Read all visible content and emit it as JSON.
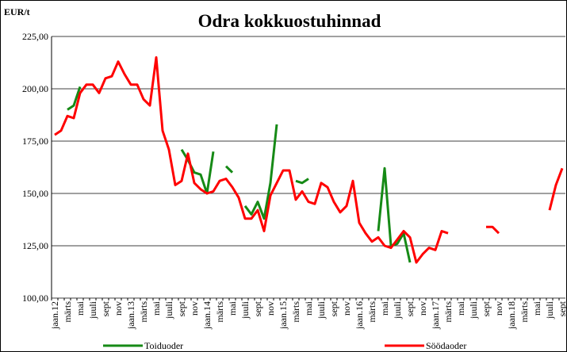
{
  "chart_data": {
    "type": "line",
    "title": "Odra kokkuostuhinnad",
    "y_label": "EUR/t",
    "categories": [
      "jaan.12",
      null,
      "märts",
      null,
      "mai",
      null,
      "juuli",
      null,
      "sept",
      null,
      "nov",
      null,
      "jaan.13",
      null,
      "märts",
      null,
      "mai",
      null,
      "juuli",
      null,
      "sept",
      null,
      "nov",
      null,
      "jaan.14",
      null,
      "märts",
      null,
      "mai",
      null,
      "juuli",
      null,
      "sept",
      null,
      "nov",
      null,
      "jaan.15",
      null,
      "märts",
      null,
      "mai",
      null,
      "juuli",
      null,
      "sept",
      null,
      "nov",
      null,
      "jaan.16",
      null,
      "märts",
      null,
      "mai",
      null,
      "juuli",
      null,
      "sept",
      null,
      "nov",
      null,
      "jaan.17",
      null,
      "märts",
      null,
      "mai",
      null,
      "juuli",
      null,
      "sept",
      null,
      "nov",
      null,
      "jaan.18",
      null,
      "märts",
      null,
      "mai",
      null,
      "juuli",
      null,
      "sept"
    ],
    "series": [
      {
        "name": "Toiduoder",
        "color": "#168a16",
        "values": [
          null,
          null,
          190,
          192,
          201,
          null,
          null,
          null,
          null,
          null,
          null,
          null,
          null,
          null,
          null,
          null,
          null,
          null,
          null,
          null,
          171,
          166,
          160,
          159,
          150,
          170,
          null,
          163,
          160,
          null,
          144,
          140,
          146,
          138,
          155,
          183,
          null,
          null,
          156,
          155,
          157,
          null,
          null,
          null,
          null,
          null,
          null,
          null,
          null,
          null,
          null,
          132,
          162,
          125,
          126,
          131,
          117,
          null,
          null,
          null,
          null,
          null,
          null,
          null,
          null,
          null,
          null,
          null,
          null,
          null,
          null,
          null,
          null,
          null,
          null,
          null,
          null,
          null,
          null,
          null,
          null
        ]
      },
      {
        "name": "Söödaoder",
        "color": "#ff0000",
        "values": [
          178,
          180,
          187,
          186,
          198,
          202,
          202,
          198,
          205,
          206,
          213,
          207,
          202,
          202,
          195,
          192,
          215,
          180,
          171,
          154,
          156,
          169,
          155,
          152,
          150,
          151,
          156,
          157,
          153,
          148,
          138,
          138,
          142,
          132,
          149,
          155,
          161,
          161,
          147,
          151,
          146,
          145,
          155,
          153,
          146,
          141,
          144,
          156,
          136,
          131,
          127,
          129,
          125,
          124,
          128,
          132,
          129,
          117,
          121,
          124,
          123,
          132,
          131,
          null,
          null,
          null,
          null,
          null,
          134,
          134,
          131,
          null,
          null,
          null,
          null,
          null,
          null,
          null,
          142,
          154,
          162
        ]
      }
    ],
    "ylim": [
      100,
      225
    ],
    "yticks": [
      {
        "value": 100,
        "label": "100,00"
      },
      {
        "value": 125,
        "label": "125,00"
      },
      {
        "value": 150,
        "label": "150,00"
      },
      {
        "value": 175,
        "label": "175,00"
      },
      {
        "value": 200,
        "label": "200,00"
      },
      {
        "value": 225,
        "label": "225,00"
      }
    ],
    "grid": true
  }
}
